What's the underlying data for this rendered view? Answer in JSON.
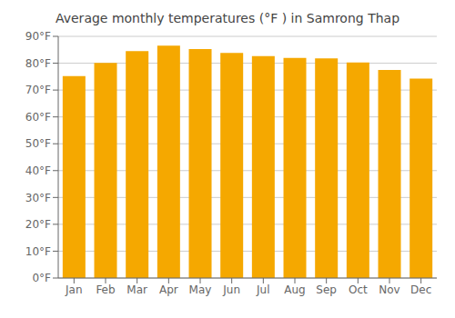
{
  "chart_data": {
    "type": "bar",
    "title": "Average monthly temperatures (°F ) in Samrong Thap",
    "categories": [
      "Jan",
      "Feb",
      "Mar",
      "Apr",
      "May",
      "Jun",
      "Jul",
      "Aug",
      "Sep",
      "Oct",
      "Nov",
      "Dec"
    ],
    "values": [
      75.2,
      80.1,
      84.5,
      86.5,
      85.3,
      83.8,
      82.6,
      82.0,
      81.8,
      80.3,
      77.5,
      74.3
    ],
    "color": "#F5A800",
    "ylim": [
      0,
      90
    ],
    "yticks": [
      {
        "value": 0,
        "label": "0°F"
      },
      {
        "value": 10,
        "label": "10°F"
      },
      {
        "value": 20,
        "label": "20°F"
      },
      {
        "value": 30,
        "label": "30°F"
      },
      {
        "value": 40,
        "label": "40°F"
      },
      {
        "value": 50,
        "label": "50°F"
      },
      {
        "value": 60,
        "label": "60°F"
      },
      {
        "value": 70,
        "label": "70°F"
      },
      {
        "value": 80,
        "label": "80°F"
      },
      {
        "value": 90,
        "label": "90°F"
      }
    ],
    "grid": true
  }
}
